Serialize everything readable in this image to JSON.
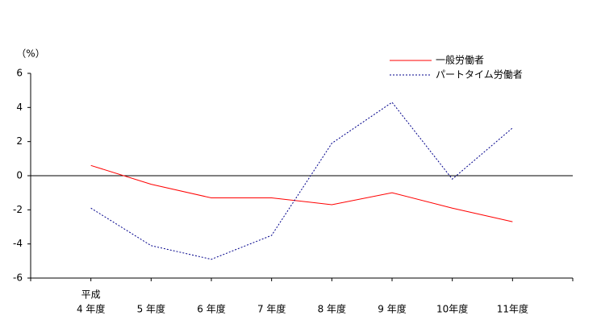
{
  "chart_data": {
    "type": "line",
    "y_unit_label": "（%）",
    "era_label": "平成",
    "categories": [
      "4 年度",
      "5 年度",
      "6 年度",
      "7 年度",
      "8 年度",
      "9 年度",
      "10年度",
      "11年度"
    ],
    "series": [
      {
        "name": "一般労働者",
        "color": "#ff0000",
        "dash": "solid",
        "values": [
          0.6,
          -0.5,
          -1.3,
          -1.3,
          -1.7,
          -1.0,
          -1.9,
          -2.7
        ]
      },
      {
        "name": "パートタイム労働者",
        "color": "#00008b",
        "dash": "dotted",
        "values": [
          -1.9,
          -4.1,
          -4.9,
          -3.5,
          1.9,
          4.3,
          -0.2,
          2.8
        ]
      }
    ],
    "ylim": [
      -6,
      6
    ],
    "yticks": [
      6,
      4,
      2,
      0,
      -2,
      -4,
      -6
    ],
    "zero_line": true,
    "legend": "top-right"
  }
}
